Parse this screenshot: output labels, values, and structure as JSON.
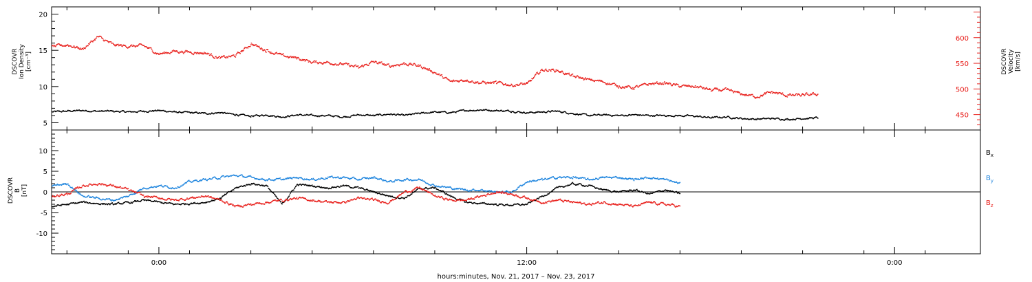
{
  "chart_data": [
    {
      "type": "scatter",
      "panel": "top",
      "ylabel_left": [
        "DSCOVR",
        "Ion Density",
        "[cm⁻³]"
      ],
      "ylabel_right": [
        "DSCOVR",
        "Velocity",
        "[km/s]"
      ],
      "ylim_left": [
        4,
        21
      ],
      "left_ticks": [
        "5",
        "10",
        "15",
        "20"
      ],
      "ylim_right": [
        420,
        660
      ],
      "right_ticks": [
        "450",
        "500",
        "550",
        "600"
      ],
      "series": [
        {
          "color": "#000000",
          "axis": "left",
          "x": [
            -3.5,
            -3,
            -2.5,
            -2,
            -1.5,
            -1,
            -0.5,
            0,
            0.5,
            1,
            1.5,
            2,
            2.5,
            3,
            3.5,
            4,
            4.5,
            5,
            5.5,
            6,
            6.5,
            7,
            7.5,
            8,
            8.5,
            9,
            9.5,
            10,
            10.5,
            11,
            11.5,
            12,
            12.5,
            13,
            13.5,
            14,
            14.5,
            15,
            15.5,
            16,
            16.5,
            17,
            17.5,
            18,
            18.5,
            19,
            19.5,
            20,
            20.5,
            21,
            21.5
          ],
          "y": [
            6.5,
            6.6,
            6.7,
            6.6,
            6.6,
            6.5,
            6.6,
            6.7,
            6.5,
            6.4,
            6.3,
            6.4,
            6.1,
            5.9,
            6.1,
            5.8,
            6.1,
            6.0,
            6.0,
            5.8,
            6.1,
            6.0,
            6.2,
            6.0,
            6.3,
            6.5,
            6.4,
            6.7,
            6.8,
            6.7,
            6.6,
            6.4,
            6.5,
            6.6,
            6.3,
            6.0,
            6.1,
            6.0,
            6.1,
            6.0,
            6.0,
            6.0,
            5.9,
            5.7,
            5.8,
            5.6,
            5.5,
            5.6,
            5.5,
            5.6,
            5.7
          ]
        },
        {
          "color": "#e8201c",
          "axis": "right",
          "x": [
            -3.5,
            -3,
            -2.5,
            -2,
            -1.5,
            -1,
            -0.5,
            0,
            0.5,
            1,
            1.5,
            2,
            2.5,
            3,
            3.5,
            4,
            4.5,
            5,
            5.5,
            6,
            6.5,
            7,
            7.5,
            8,
            8.5,
            9,
            9.5,
            10,
            10.5,
            11,
            11.5,
            12,
            12.5,
            13,
            13.5,
            14,
            14.5,
            15,
            15.5,
            16,
            16.5,
            17,
            17.5,
            18,
            18.5,
            19,
            19.5,
            20,
            20.5,
            21,
            21.5
          ],
          "y": [
            582,
            586,
            578,
            602,
            586,
            583,
            584,
            568,
            574,
            572,
            570,
            560,
            565,
            588,
            575,
            565,
            560,
            552,
            552,
            548,
            542,
            553,
            545,
            550,
            545,
            532,
            514,
            518,
            512,
            512,
            508,
            510,
            538,
            536,
            525,
            518,
            514,
            505,
            502,
            510,
            512,
            505,
            505,
            498,
            498,
            490,
            485,
            494,
            487,
            488,
            490
          ]
        }
      ]
    },
    {
      "type": "scatter",
      "panel": "bottom",
      "ylabel_left": [
        "DSCOVR",
        "B",
        "[nT]"
      ],
      "ylim": [
        -15,
        15
      ],
      "left_ticks": [
        "-10",
        "-5",
        "0",
        "5",
        "10"
      ],
      "xlim": [
        -3.5,
        26.8
      ],
      "x_tick_labels": [
        "0:00",
        "12:00",
        "0:00"
      ],
      "x_tick_hours": [
        0,
        12,
        24
      ],
      "xlabel": "hours:minutes, Nov. 21, 2017 – Nov. 23, 2017",
      "legend": [
        {
          "label": "B",
          "sub": "x",
          "color": "#000000"
        },
        {
          "label": "B",
          "sub": "y",
          "color": "#1f85de"
        },
        {
          "label": "B",
          "sub": "z",
          "color": "#e8201c"
        }
      ],
      "series": [
        {
          "name": "Bx",
          "color": "#000000",
          "x": [
            -3.5,
            -3,
            -2.5,
            -2,
            -1.5,
            -1,
            -0.5,
            0,
            0.5,
            1,
            1.5,
            2,
            2.5,
            3,
            3.5,
            4,
            4.5,
            5,
            5.5,
            6,
            6.5,
            7,
            7.5,
            8,
            8.5,
            9,
            9.5,
            10,
            10.5,
            11,
            11.5,
            12,
            12.5,
            13,
            13.5,
            14,
            14.5,
            15,
            15.5,
            16,
            16.5,
            17
          ],
          "y": [
            -3.5,
            -3.0,
            -2.5,
            -2.8,
            -3.0,
            -2.6,
            -2.0,
            -2.5,
            -3.0,
            -2.8,
            -2.5,
            -1.5,
            1.0,
            2.0,
            1.5,
            -3.0,
            1.8,
            1.5,
            1.0,
            1.5,
            1.0,
            0.0,
            -1.0,
            -1.5,
            0.8,
            1.0,
            -1.0,
            -2.5,
            -2.8,
            -3.0,
            -3.2,
            -3.0,
            -1.0,
            1.0,
            2.0,
            1.5,
            0.5,
            0.0,
            0.5,
            -0.5,
            0.5,
            -0.5
          ]
        },
        {
          "name": "By",
          "color": "#1f85de",
          "x": [
            -3.5,
            -3,
            -2.5,
            -2,
            -1.5,
            -1,
            -0.5,
            0,
            0.5,
            1,
            1.5,
            2,
            2.5,
            3,
            3.5,
            4,
            4.5,
            5,
            5.5,
            6,
            6.5,
            7,
            7.5,
            8,
            8.5,
            9,
            9.5,
            10,
            10.5,
            11,
            11.5,
            12,
            12.5,
            13,
            13.5,
            14,
            14.5,
            15,
            15.5,
            16,
            16.5,
            17
          ],
          "y": [
            1.5,
            2.0,
            -1.0,
            -1.5,
            -2.0,
            -1.0,
            1.0,
            1.5,
            1.0,
            2.5,
            3.0,
            3.5,
            4.0,
            3.5,
            3.0,
            3.0,
            3.5,
            3.0,
            3.5,
            3.5,
            3.0,
            3.5,
            2.5,
            3.0,
            3.0,
            1.5,
            1.0,
            0.5,
            0.5,
            0.0,
            0.0,
            2.5,
            3.0,
            3.5,
            3.5,
            3.0,
            3.5,
            3.5,
            3.0,
            3.5,
            3.0,
            2.0
          ]
        },
        {
          "name": "Bz",
          "color": "#e8201c",
          "x": [
            -3.5,
            -3,
            -2.5,
            -2,
            -1.5,
            -1,
            -0.5,
            0,
            0.5,
            1,
            1.5,
            2,
            2.5,
            3,
            3.5,
            4,
            4.5,
            5,
            5.5,
            6,
            6.5,
            7,
            7.5,
            8,
            8.5,
            9,
            9.5,
            10,
            10.5,
            11,
            11.5,
            12,
            12.5,
            13,
            13.5,
            14,
            14.5,
            15,
            15.5,
            16,
            16.5,
            17
          ],
          "y": [
            -1.0,
            -0.5,
            1.5,
            2.0,
            1.5,
            0.5,
            -1.0,
            -1.5,
            -2.0,
            -1.5,
            -1.0,
            -2.0,
            -3.5,
            -3.0,
            -2.5,
            -2.0,
            -1.5,
            -2.0,
            -2.5,
            -2.5,
            -1.5,
            -2.0,
            -2.5,
            0.0,
            1.0,
            -1.0,
            -2.0,
            -2.0,
            -1.0,
            0.0,
            -0.5,
            -1.5,
            -2.5,
            -2.0,
            -2.5,
            -3.0,
            -2.5,
            -3.0,
            -3.5,
            -2.5,
            -3.0,
            -3.5
          ]
        }
      ]
    }
  ]
}
